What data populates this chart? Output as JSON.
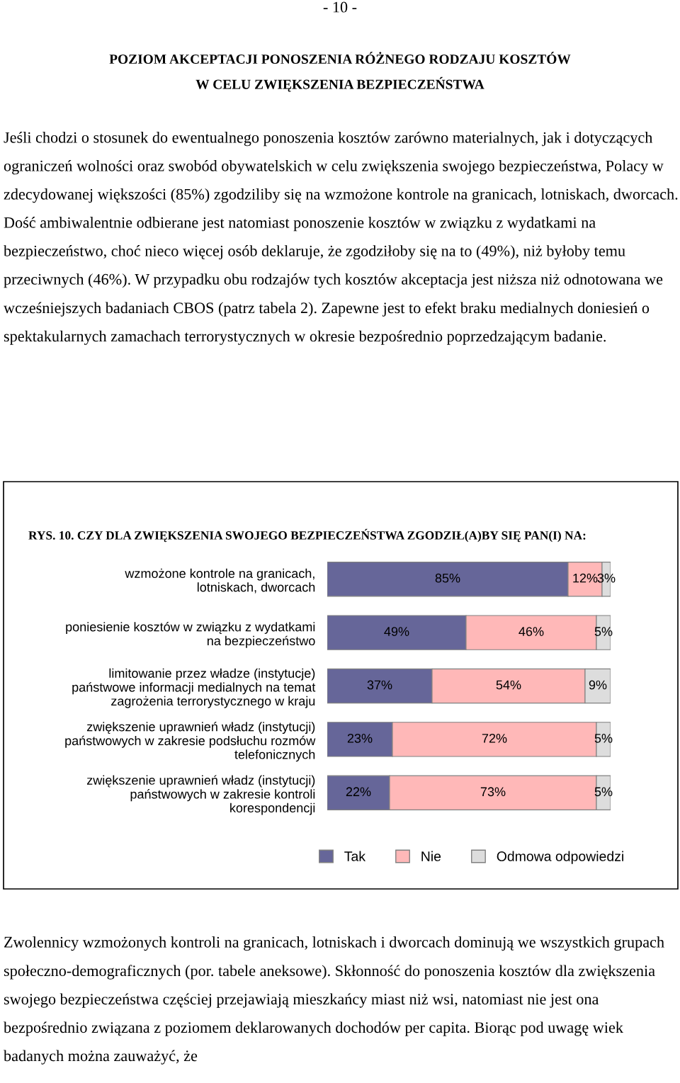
{
  "chart_data": {
    "type": "bar",
    "orientation": "horizontal",
    "stacked": true,
    "title": "RYS. 10. CZY DLA ZWIĘKSZENIA SWOJEGO BEZPIECZEŃSTWA ZGODZIŁ(A)BY SIĘ PAN(I) NA:",
    "categories": [
      "wzmożone kontrole na granicach,\nlotniskach, dworcach",
      "poniesienie kosztów w związku z wydatkami\nna bezpieczeństwo",
      "limitowanie przez władze (instytucje)\npaństwowe informacji medialnych na temat\nzagrożenia terrorystycznego w kraju",
      "zwiększenie uprawnień władz (instytucji)\npaństwowych w zakresie podsłuchu rozmów\ntelefonicznych",
      "zwiększenie uprawnień władz (instytucji)\npaństwowych w zakresie kontroli\nkorespondencji"
    ],
    "series": [
      {
        "name": "Tak",
        "color": "#666699",
        "values": [
          85,
          49,
          37,
          23,
          22
        ],
        "value_labels": [
          "85%",
          "49%",
          "37%",
          "23%",
          "22%"
        ]
      },
      {
        "name": "Nie",
        "color": "#ffb8b8",
        "values": [
          12,
          46,
          54,
          72,
          73
        ],
        "value_labels": [
          "12%",
          "46%",
          "54%",
          "72%",
          "73%"
        ]
      },
      {
        "name": "Odmowa odpowiedzi",
        "color": "#dddddd",
        "values": [
          3,
          5,
          9,
          5,
          5
        ],
        "value_labels": [
          "3%",
          "5%",
          "9%",
          "5%",
          "5%"
        ]
      }
    ],
    "legend": "bottom",
    "annotations": [
      "- 10 -",
      "POZIOM AKCEPTACJI PONOSZENIA RÓŻNEGO RODZAJU KOSZTÓW\nW CELU ZWIĘKSZENIA BEZPIECZEŃSTWA",
      "Jeśli chodzi o stosunek do ewentualnego ponoszenia kosztów zarówno materialnych, jak i dotyczących ograniczeń wolności oraz swobód obywatelskich w celu zwiększenia swojego bezpieczeństwa, Polacy w zdecydowanej większości (85%) zgodziliby się na wzmożone kontrole na granicach, lotniskach, dworcach. Dość ambiwalentnie odbierane jest natomiast ponoszenie kosztów w związku z wydatkami na bezpieczeństwo, choć nieco więcej osób deklaruje, że zgodziłoby się na to (49%), niż byłoby temu przeciwnych (46%). W przypadku obu rodzajów tych kosztów akceptacja jest niższa niż odnotowana we wcześniejszych badaniach CBOS (patrz tabela 2). Zapewne jest to efekt braku medialnych doniesień o spektakularnych zamachach terrorystycznych w okresie bezpośrednio poprzedzającym badanie.",
      "Zwolennicy wzmożonych kontroli na granicach, lotniskach i dworcach dominują we wszystkich grupach społeczno-demograficznych (por. tabele aneksowe). Skłonność do ponoszenia kosztów dla zwiększenia swojego bezpieczeństwa częściej przejawiają mieszkańcy miast niż wsi, natomiast nie jest ona bezpośrednio związana z poziomem deklarowanych dochodów per capita. Biorąc pod uwagę wiek badanych można zauważyć, że"
    ]
  }
}
